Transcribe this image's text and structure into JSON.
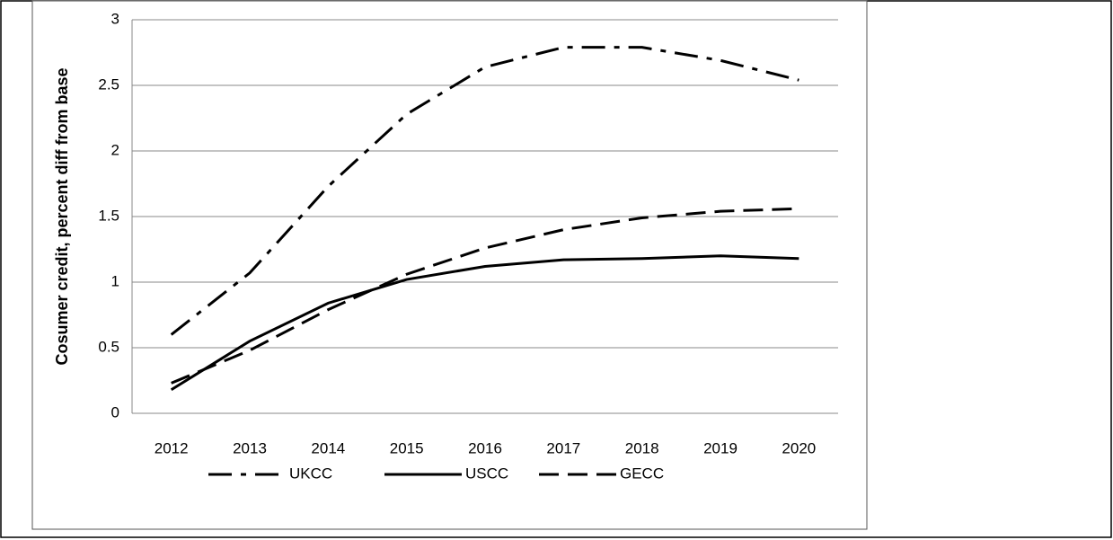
{
  "chart_data": {
    "type": "line",
    "y_label": "Cosumer credit, percent diff from base",
    "categories": [
      "2012",
      "2013",
      "2014",
      "2015",
      "2016",
      "2017",
      "2018",
      "2019",
      "2020"
    ],
    "series": [
      {
        "name": "UKCC",
        "color": "#000000",
        "dash": "dashdot",
        "values": [
          0.6,
          1.07,
          1.73,
          2.28,
          2.64,
          2.79,
          2.79,
          2.69,
          2.54
        ]
      },
      {
        "name": "USCC",
        "color": "#000000",
        "dash": "solid",
        "values": [
          0.18,
          0.55,
          0.84,
          1.02,
          1.12,
          1.17,
          1.18,
          1.2,
          1.18
        ]
      },
      {
        "name": "GECC",
        "color": "#000000",
        "dash": "dashed",
        "values": [
          0.23,
          0.48,
          0.79,
          1.06,
          1.26,
          1.4,
          1.49,
          1.54,
          1.56
        ]
      }
    ],
    "ylim": [
      0,
      3
    ],
    "yticks": [
      0,
      0.5,
      1,
      1.5,
      2,
      2.5,
      3
    ],
    "grid": true,
    "legend": "bottom"
  }
}
